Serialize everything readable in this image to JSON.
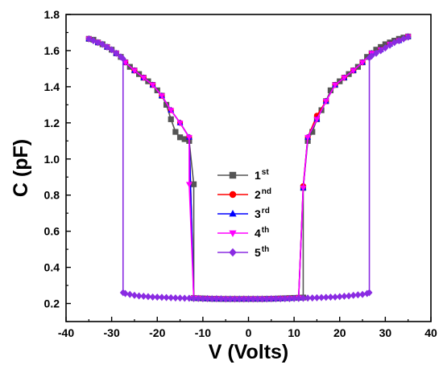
{
  "chart_data": {
    "type": "line",
    "title": "",
    "xlabel": "V (Volts)",
    "ylabel": "C (pF)",
    "xlim": [
      -40,
      40
    ],
    "ylim": [
      0.1,
      1.8
    ],
    "xticks": [
      -40,
      -30,
      -20,
      -10,
      0,
      10,
      20,
      30,
      40
    ],
    "xtick_labels": [
      "-40",
      "-30",
      "-20",
      "-10",
      "0",
      "10",
      "20",
      "30",
      "40"
    ],
    "yticks": [
      0.2,
      0.4,
      0.6,
      0.8,
      1.0,
      1.2,
      1.4,
      1.6,
      1.8
    ],
    "ytick_labels": [
      "0.2",
      "0.4",
      "0.6",
      "0.8",
      "1.0",
      "1.2",
      "1.4",
      "1.6",
      "1.8"
    ],
    "grid": false,
    "legend_position": "center",
    "series": [
      {
        "name": "1",
        "suffix": "st",
        "color": "#555555",
        "marker": "square",
        "x": [
          -35,
          -34,
          -33,
          -32,
          -31,
          -30,
          -29,
          -28,
          -27,
          -26,
          -25,
          -24,
          -23,
          -22,
          -21,
          -20,
          -19,
          -18,
          -17,
          -16,
          -15,
          -14,
          -13,
          -12,
          -12,
          -11,
          -10,
          -9,
          -8,
          -7,
          -6,
          -5,
          -4,
          -3,
          -2,
          -1,
          0,
          1,
          2,
          3,
          4,
          5,
          6,
          7,
          8,
          9,
          10,
          11,
          12,
          12,
          13,
          14,
          15,
          16,
          17,
          18,
          19,
          20,
          21,
          22,
          23,
          24,
          25,
          26,
          27,
          28,
          29,
          30,
          31,
          32,
          33,
          34,
          35
        ],
        "y": [
          1.665,
          1.66,
          1.645,
          1.635,
          1.62,
          1.605,
          1.585,
          1.565,
          1.535,
          1.51,
          1.49,
          1.47,
          1.45,
          1.43,
          1.41,
          1.38,
          1.35,
          1.3,
          1.22,
          1.15,
          1.12,
          1.11,
          1.1,
          0.86,
          0.23,
          0.229,
          0.228,
          0.227,
          0.226,
          0.226,
          0.225,
          0.225,
          0.225,
          0.225,
          0.225,
          0.225,
          0.225,
          0.225,
          0.225,
          0.225,
          0.226,
          0.226,
          0.227,
          0.228,
          0.229,
          0.23,
          0.231,
          0.232,
          0.233,
          0.84,
          1.1,
          1.15,
          1.22,
          1.27,
          1.32,
          1.38,
          1.41,
          1.43,
          1.45,
          1.47,
          1.49,
          1.51,
          1.535,
          1.565,
          1.585,
          1.605,
          1.62,
          1.635,
          1.645,
          1.655,
          1.665,
          1.672,
          1.678
        ]
      },
      {
        "name": "2",
        "suffix": "nd",
        "color": "#ff0000",
        "marker": "circle",
        "x": [
          -35,
          -33,
          -31,
          -29,
          -27,
          -25,
          -23,
          -21,
          -19,
          -17,
          -15,
          -13,
          -12,
          -11,
          -9,
          -7,
          -5,
          -3,
          -1,
          1,
          3,
          5,
          7,
          9,
          11,
          12,
          13,
          15,
          17,
          19,
          21,
          23,
          25,
          27,
          29,
          31,
          33,
          35
        ],
        "y": [
          1.665,
          1.645,
          1.62,
          1.585,
          1.535,
          1.49,
          1.45,
          1.41,
          1.35,
          1.27,
          1.2,
          1.12,
          0.23,
          0.229,
          0.227,
          0.226,
          0.225,
          0.225,
          0.225,
          0.225,
          0.225,
          0.226,
          0.227,
          0.228,
          0.231,
          0.85,
          1.12,
          1.24,
          1.32,
          1.41,
          1.45,
          1.49,
          1.535,
          1.585,
          1.605,
          1.635,
          1.655,
          1.678
        ]
      },
      {
        "name": "3",
        "suffix": "rd",
        "color": "#0000ff",
        "marker": "triangle-up",
        "x": [
          -35,
          -33,
          -31,
          -29,
          -27,
          -25,
          -23,
          -21,
          -19,
          -17,
          -15,
          -13,
          -12,
          -11,
          -9,
          -7,
          -5,
          -3,
          -1,
          1,
          3,
          5,
          7,
          9,
          11,
          12,
          13,
          15,
          17,
          19,
          21,
          23,
          25,
          27,
          29,
          31,
          33,
          35
        ],
        "y": [
          1.665,
          1.645,
          1.62,
          1.585,
          1.535,
          1.49,
          1.45,
          1.41,
          1.35,
          1.27,
          1.2,
          1.12,
          0.23,
          0.229,
          0.227,
          0.226,
          0.225,
          0.225,
          0.225,
          0.225,
          0.225,
          0.226,
          0.227,
          0.228,
          0.231,
          0.84,
          1.12,
          1.22,
          1.32,
          1.41,
          1.45,
          1.49,
          1.535,
          1.585,
          1.605,
          1.635,
          1.655,
          1.678
        ]
      },
      {
        "name": "4",
        "suffix": "th",
        "color": "#ff00ff",
        "marker": "triangle-down",
        "x": [
          -35,
          -33,
          -31,
          -29,
          -27,
          -25,
          -23,
          -21,
          -19,
          -17,
          -15,
          -13,
          -13,
          -12,
          -11,
          -9,
          -7,
          -5,
          -3,
          -1,
          1,
          3,
          5,
          7,
          9,
          11,
          12,
          13,
          15,
          17,
          19,
          21,
          23,
          25,
          27,
          29,
          31,
          33,
          35
        ],
        "y": [
          1.665,
          1.645,
          1.62,
          1.585,
          1.535,
          1.49,
          1.45,
          1.41,
          1.35,
          1.27,
          1.2,
          1.12,
          0.86,
          0.23,
          0.229,
          0.227,
          0.226,
          0.225,
          0.225,
          0.225,
          0.225,
          0.225,
          0.226,
          0.227,
          0.228,
          0.231,
          0.84,
          1.12,
          1.22,
          1.32,
          1.41,
          1.45,
          1.49,
          1.535,
          1.585,
          1.605,
          1.635,
          1.655,
          1.678
        ]
      },
      {
        "name": "5",
        "suffix": "th",
        "color": "#8a2be2",
        "marker": "diamond",
        "x": [
          -35,
          -34,
          -33,
          -32,
          -31,
          -30,
          -29,
          -28,
          -27.5,
          -27.5,
          -27,
          -26,
          -25,
          -24,
          -23,
          -22,
          -21,
          -20,
          -19,
          -18,
          -17,
          -16,
          -15,
          -14,
          -13,
          -12,
          -11,
          -10,
          -9,
          -8,
          -7,
          -6,
          -5,
          -4,
          -3,
          -2,
          -1,
          0,
          1,
          2,
          3,
          4,
          5,
          6,
          7,
          8,
          9,
          10,
          11,
          12,
          13,
          14,
          15,
          16,
          17,
          18,
          19,
          20,
          21,
          22,
          23,
          24,
          25,
          26,
          26.5,
          26.5,
          27,
          28,
          29,
          30,
          31,
          32,
          33,
          34,
          35
        ],
        "y": [
          1.665,
          1.655,
          1.645,
          1.635,
          1.62,
          1.605,
          1.585,
          1.565,
          1.555,
          0.26,
          0.255,
          0.25,
          0.245,
          0.242,
          0.24,
          0.238,
          0.236,
          0.235,
          0.234,
          0.233,
          0.232,
          0.231,
          0.23,
          0.229,
          0.229,
          0.228,
          0.228,
          0.227,
          0.227,
          0.226,
          0.226,
          0.226,
          0.225,
          0.225,
          0.225,
          0.225,
          0.225,
          0.225,
          0.225,
          0.225,
          0.225,
          0.225,
          0.226,
          0.226,
          0.226,
          0.227,
          0.227,
          0.228,
          0.228,
          0.229,
          0.23,
          0.231,
          0.232,
          0.233,
          0.234,
          0.235,
          0.236,
          0.238,
          0.24,
          0.242,
          0.245,
          0.248,
          0.25,
          0.255,
          0.26,
          1.56,
          1.57,
          1.585,
          1.6,
          1.615,
          1.63,
          1.645,
          1.655,
          1.665,
          1.675
        ]
      }
    ]
  }
}
